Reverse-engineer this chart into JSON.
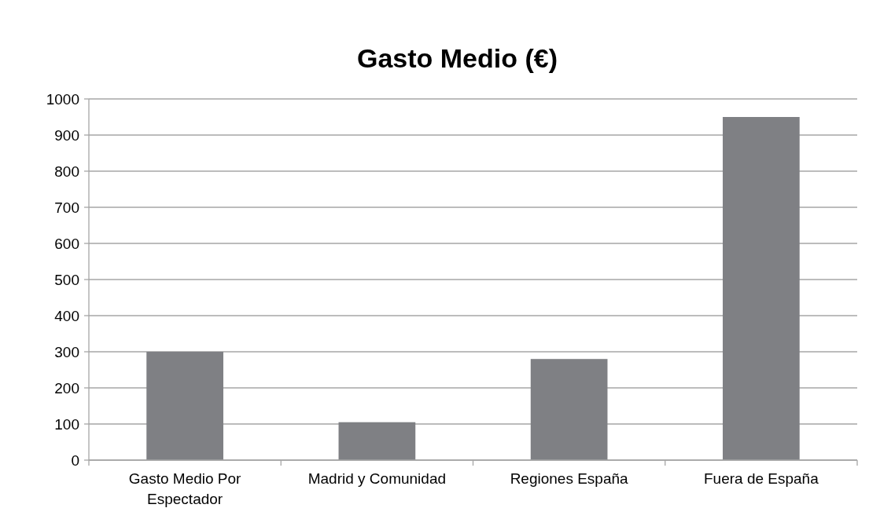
{
  "chart_data": {
    "type": "bar",
    "title": "Gasto Medio (€)",
    "categories": [
      "Gasto Medio Por Espectador",
      "Madrid y Comunidad",
      "Regiones España",
      "Fuera de España"
    ],
    "values": [
      300,
      105,
      280,
      950
    ],
    "color": "#7f8084",
    "ylim": [
      0,
      1000
    ],
    "yticks": [
      0,
      100,
      200,
      300,
      400,
      500,
      600,
      700,
      800,
      900,
      1000
    ],
    "grid": "y"
  }
}
